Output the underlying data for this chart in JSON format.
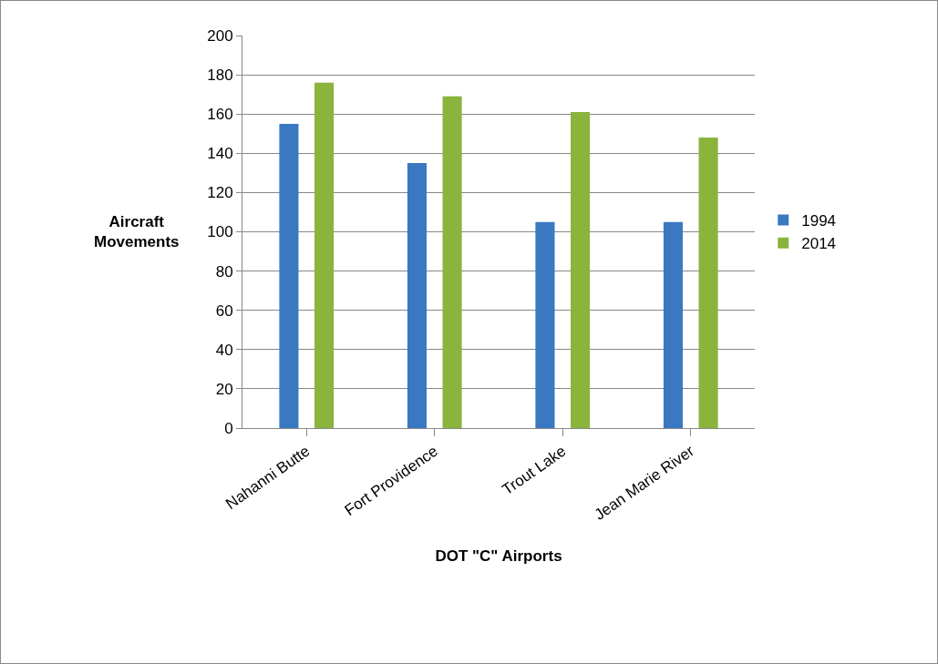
{
  "chart_data": {
    "type": "bar",
    "xlabel": "DOT \"C\" Airports",
    "ylabel": "Aircraft\nMovements",
    "categories": [
      "Nahanni Butte",
      "Fort Providence",
      "Trout Lake",
      "Jean Marie River"
    ],
    "series": [
      {
        "name": "1994",
        "color": "#3a78c2",
        "values": [
          155,
          135,
          105,
          105
        ]
      },
      {
        "name": "2014",
        "color": "#8ab43c",
        "values": [
          176,
          169,
          161,
          148
        ]
      }
    ],
    "ylim": [
      0,
      200
    ],
    "yticks": [
      0,
      20,
      40,
      60,
      80,
      100,
      120,
      140,
      160,
      180,
      200
    ],
    "grid": "y",
    "legend": "right"
  }
}
